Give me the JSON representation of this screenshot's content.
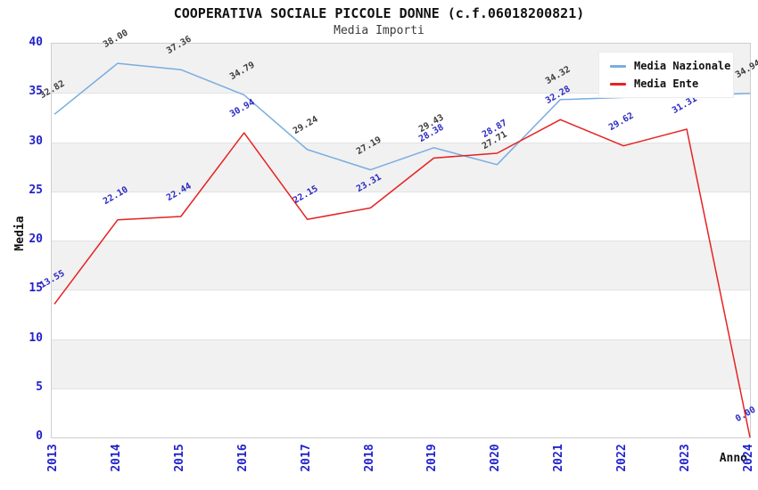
{
  "chart_data": {
    "type": "line",
    "title": "COOPERATIVA SOCIALE PICCOLE DONNE (c.f.06018200821)",
    "subtitle": "Media Importi",
    "xlabel": "Anno",
    "ylabel": "Media",
    "x": [
      "2013",
      "2014",
      "2015",
      "2016",
      "2017",
      "2018",
      "2019",
      "2020",
      "2021",
      "2022",
      "2023",
      "2024"
    ],
    "series": [
      {
        "name": "Media Nazionale",
        "color": "#79ade0",
        "label_color": "#3c3c3c",
        "values": [
          32.82,
          38.0,
          37.36,
          34.79,
          29.24,
          27.19,
          29.43,
          27.71,
          34.32,
          34.53,
          34.75,
          34.94
        ],
        "labels": [
          "32.82",
          "38.00",
          "37.36",
          "34.79",
          "29.24",
          "27.19",
          "29.43",
          "27.71",
          "34.32",
          null,
          null,
          "34.94"
        ]
      },
      {
        "name": "Media Ente",
        "color": "#e62222",
        "label_color": "#2a2ac4",
        "values": [
          13.55,
          22.1,
          22.44,
          30.94,
          22.15,
          23.31,
          28.38,
          28.87,
          32.28,
          29.62,
          31.31,
          0.0
        ],
        "labels": [
          "13.55",
          "22.10",
          "22.44",
          "30.94",
          "22.15",
          "23.31",
          "28.38",
          "28.87",
          "32.28",
          "29.62",
          "31.31",
          "0.00"
        ]
      }
    ],
    "ylim": [
      0,
      40
    ],
    "ytick_step": 5,
    "grid": "horizontal-bands",
    "legend_position": "top-right",
    "band_color": "#f1f1f1",
    "grid_color": "#e2e2e2",
    "tick_color": "#2323cc"
  }
}
